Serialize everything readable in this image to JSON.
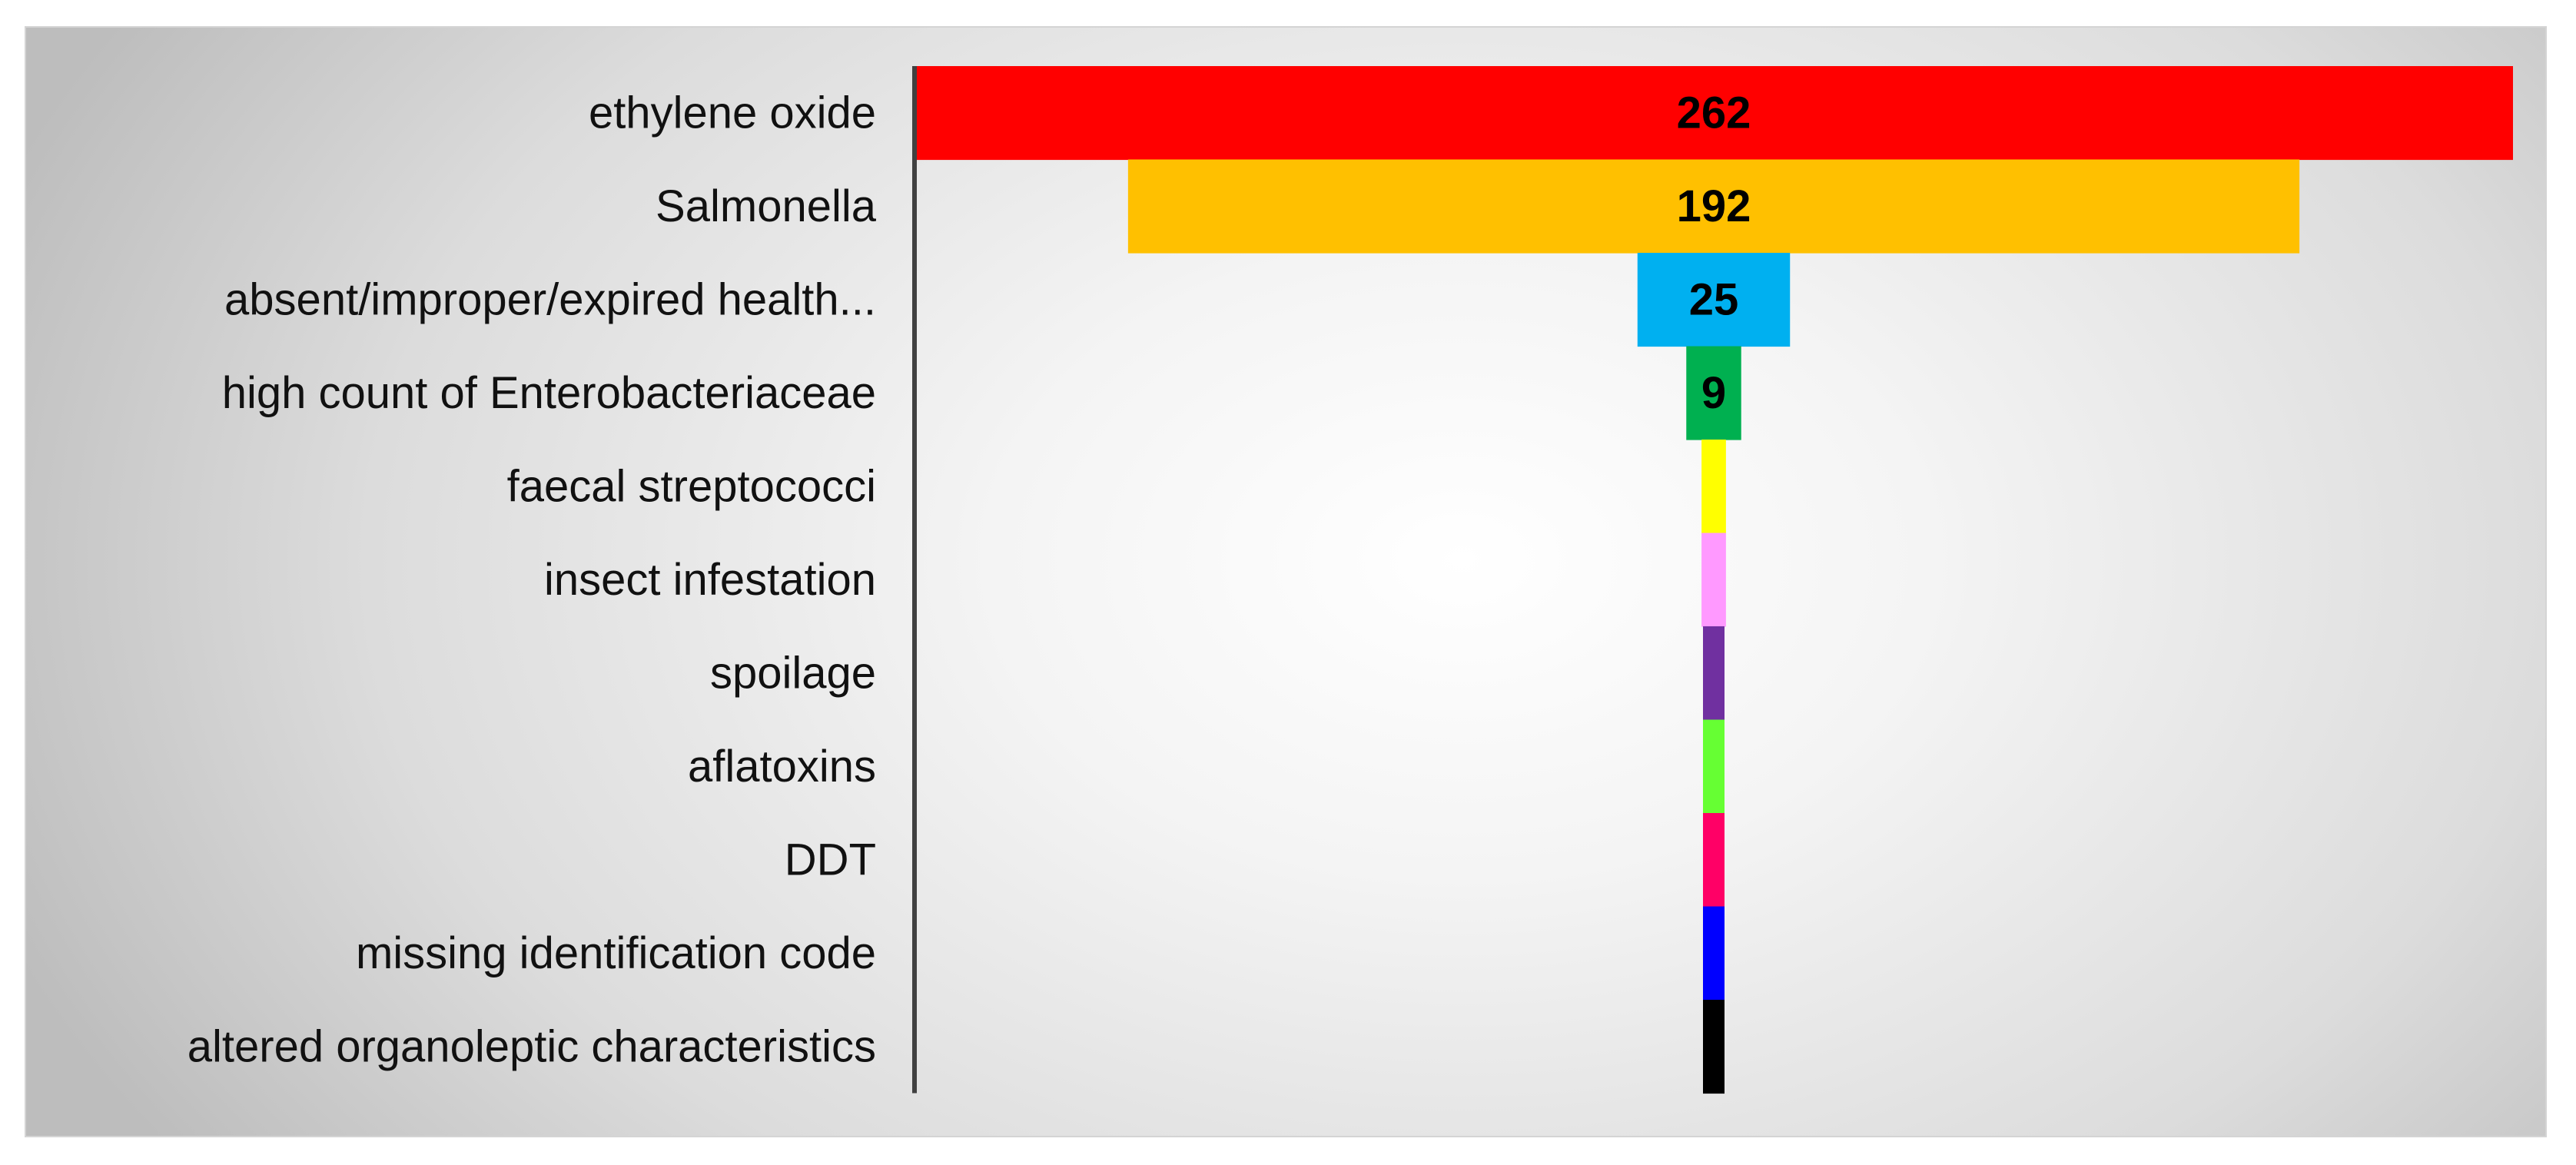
{
  "chart_data": {
    "type": "bar",
    "variant": "funnel",
    "categories": [
      "ethylene oxide",
      "Salmonella",
      "absent/improper/expired health...",
      "high count of Enterobacteriaceae",
      "faecal streptococci",
      "insect infestation",
      "spoilage",
      "aflatoxins",
      "DDT",
      "missing identification code",
      "altered organoleptic characteristics"
    ],
    "values": [
      262,
      192,
      25,
      9,
      4,
      4,
      3,
      3,
      3,
      3,
      3
    ],
    "data_labels": [
      "262",
      "192",
      "25",
      "9",
      "",
      "",
      "",
      "",
      "",
      "",
      ""
    ],
    "colors": [
      "#ff0000",
      "#ffc000",
      "#00b0f0",
      "#00b050",
      "#ffff00",
      "#ff99ff",
      "#7030a0",
      "#66ff33",
      "#ff0066",
      "#0000ff",
      "#000000"
    ],
    "title": "",
    "xlabel": "",
    "ylabel": "",
    "xlim": [
      0,
      262
    ],
    "grid": false,
    "legend": "none"
  }
}
